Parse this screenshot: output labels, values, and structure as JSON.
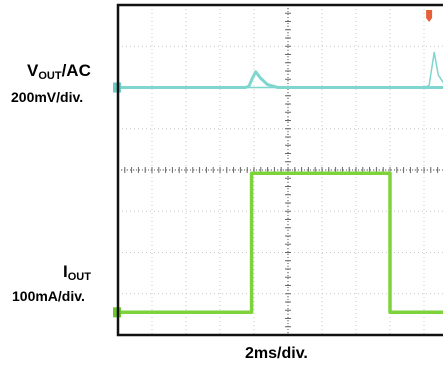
{
  "chart_data": {
    "type": "line",
    "title": "",
    "xlabel": "2ms/div.",
    "ylabel": "",
    "grid": true,
    "x_divisions": 10,
    "y_divisions": 8,
    "series": [
      {
        "name": "VOUT/AC",
        "name_main": "V",
        "name_sub": "OUT",
        "name_suffix": "/AC",
        "scale": "200mV/div.",
        "color": "#7fd6cf",
        "marker_color": "#6ccac2",
        "units": "divisions",
        "baseline_div": 2.0,
        "points": [
          [
            0.0,
            2.0
          ],
          [
            3.75,
            2.0
          ],
          [
            3.85,
            1.97
          ],
          [
            3.95,
            1.78
          ],
          [
            4.05,
            1.62
          ],
          [
            4.2,
            1.78
          ],
          [
            4.4,
            1.93
          ],
          [
            4.7,
            2.0
          ],
          [
            10.0,
            2.0
          ]
        ],
        "spikes": [
          [
            0.0,
            2.0
          ],
          [
            9.0,
            2.0
          ],
          [
            9.15,
            1.95
          ],
          [
            9.3,
            1.15
          ],
          [
            9.42,
            1.7
          ],
          [
            9.6,
            1.92
          ],
          [
            10.0,
            2.0
          ]
        ]
      },
      {
        "name": "IOUT",
        "name_main": "I",
        "name_sub": "OUT",
        "name_suffix": "",
        "scale": "100mA/div.",
        "color": "#7ed33a",
        "marker_color": "#6cc62c",
        "units": "divisions",
        "baseline_div": 7.45,
        "points": [
          [
            0.0,
            7.45
          ],
          [
            3.93,
            7.45
          ],
          [
            3.93,
            4.08
          ],
          [
            8.0,
            4.08
          ],
          [
            8.0,
            7.45
          ],
          [
            10.0,
            7.45
          ]
        ]
      }
    ],
    "trigger_marker_color": "#e6603a"
  }
}
